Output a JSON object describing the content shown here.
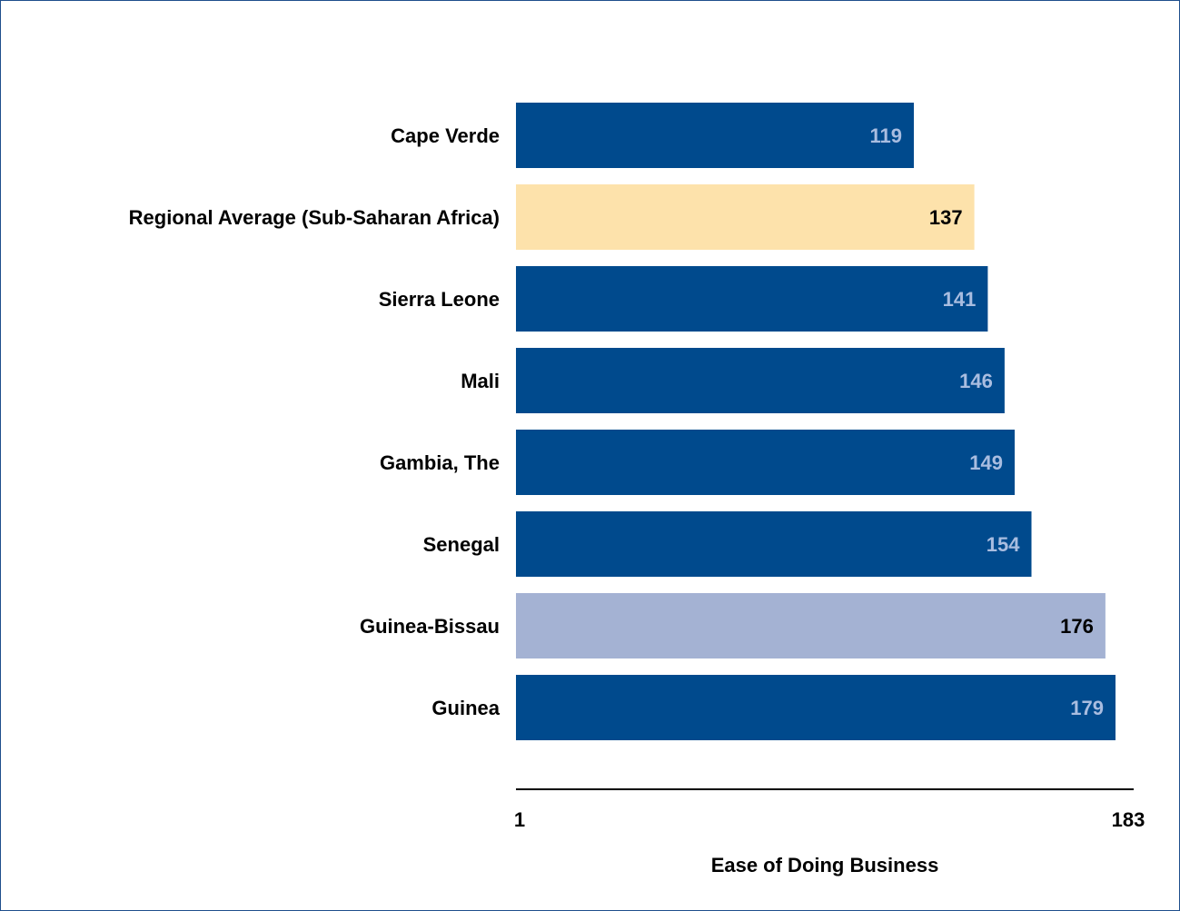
{
  "chart_data": {
    "type": "bar",
    "orientation": "horizontal",
    "title": "",
    "xlabel": "Ease of Doing Business",
    "ylabel": "",
    "xlim": [
      1,
      183
    ],
    "x_ticks": [
      "1",
      "183"
    ],
    "grid": false,
    "legend": "none",
    "categories": [
      "Cape Verde",
      "Regional Average (Sub-Saharan Africa)",
      "Sierra Leone",
      "Mali",
      "Gambia, The",
      "Senegal",
      "Guinea-Bissau",
      "Guinea"
    ],
    "values": [
      119,
      137,
      141,
      146,
      149,
      154,
      176,
      179
    ],
    "value_labels": [
      "119",
      "137",
      "141",
      "146",
      "149",
      "154",
      "176",
      "179"
    ],
    "bar_colors": [
      "#004a8d",
      "#fde2ab",
      "#004a8d",
      "#004a8d",
      "#004a8d",
      "#004a8d",
      "#a4b2d3",
      "#004a8d"
    ],
    "label_colors": [
      "#a9bde0",
      "#000000",
      "#a9bde0",
      "#a9bde0",
      "#a9bde0",
      "#a9bde0",
      "#000000",
      "#a9bde0"
    ]
  },
  "colors": {
    "axis_line": "#000000",
    "border": "#1f4e8c"
  }
}
